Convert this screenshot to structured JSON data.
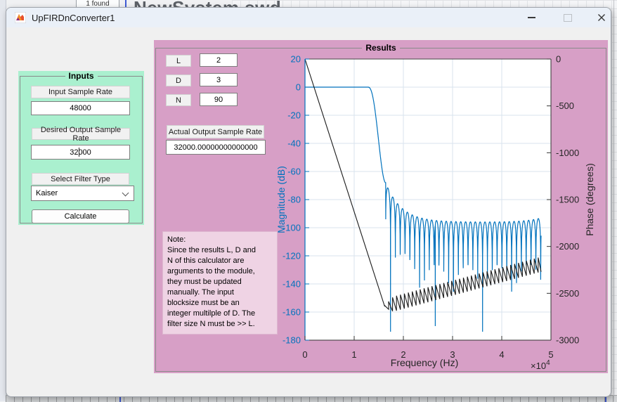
{
  "background": {
    "doc_title": "NewSystem.swd",
    "found_badge": "1 found"
  },
  "window": {
    "title": "UpFIRDnConverter1",
    "controls": {
      "minimize": "minimize",
      "maximize": "maximize",
      "close": "close"
    }
  },
  "inputs_panel": {
    "title": "Inputs",
    "fields": [
      {
        "label": "Input Sample Rate",
        "value": "48000"
      },
      {
        "label": "Desired Output Sample Rate",
        "value": "32000"
      }
    ],
    "filter": {
      "label": "Select Filter Type",
      "value": "Kaiser"
    },
    "calculate_label": "Calculate"
  },
  "results_panel": {
    "title": "Results",
    "params": [
      {
        "label": "L",
        "value": "2"
      },
      {
        "label": "D",
        "value": "3"
      },
      {
        "label": "N",
        "value": "90"
      }
    ],
    "actual": {
      "label": "Actual Output Sample Rate",
      "value": "32000.00000000000000"
    },
    "note": "Note:\nSince the results L, D and\nN of this calculator are\narguments to the module,\nthey must be updated\nmanually. The input\nblocksize must be an\ninteger multilple of D. The\nfilter size N must be >> L."
  },
  "colors": {
    "magnitude_blue": "#0072BD",
    "phase_black": "#1a1a1a",
    "results_pink": "#d79fc6",
    "inputs_green": "#aaf0cf",
    "grid": "#d9e3ee"
  },
  "chart_data": {
    "type": "line",
    "xlabel": "Frequency (Hz)",
    "x_scale": {
      "prefix": "×10",
      "exponent": "4"
    },
    "ylabel_left": "Magnitude (dB)",
    "ylabel_right": "Phase (degrees)",
    "xlim": [
      0,
      50000
    ],
    "x_ticks": [
      0,
      1,
      2,
      3,
      4,
      5
    ],
    "ylim_left": [
      -180,
      20
    ],
    "left_ticks": [
      20,
      0,
      -20,
      -40,
      -60,
      -80,
      -100,
      -120,
      -140,
      -160,
      -180
    ],
    "ylim_right": [
      -3000,
      0
    ],
    "right_ticks": [
      0,
      -500,
      -1000,
      -1500,
      -2000,
      -2500,
      -3000
    ],
    "grid": true,
    "series": [
      {
        "name": "Magnitude (dB)",
        "color": "#0072BD",
        "model": {
          "kind": "kaiser-lowpass-magnitude",
          "passband_db": 0,
          "passband_end_hz": 12800,
          "stopband_start_hz": 16400,
          "first_sidelobe_db": -68,
          "sidelobe_floor_db": -96,
          "envelope_decay_hz": 3200,
          "lobe_spacing_hz": 985,
          "end_rise_db": 3,
          "end_rise_tau_hz": 3000,
          "deep_notch_hz": 26480,
          "deep_notch_db": -170,
          "f_end_hz": 48000,
          "sample_step_hz": 19,
          "clip_db": -174
        }
      },
      {
        "name": "Phase (degrees)",
        "color": "#1a1a1a",
        "model": {
          "kind": "linear-phase-with-sawtooth",
          "start_deg": 0,
          "break_hz": 16200,
          "break_deg": -2640,
          "end_base_deg": -2190,
          "tooth_spacing_hz": 800,
          "tooth_half_amp_deg": 80,
          "tooth_amp_ramp_hz_per_deg": 25,
          "f_end_hz": 48000
        }
      }
    ]
  }
}
